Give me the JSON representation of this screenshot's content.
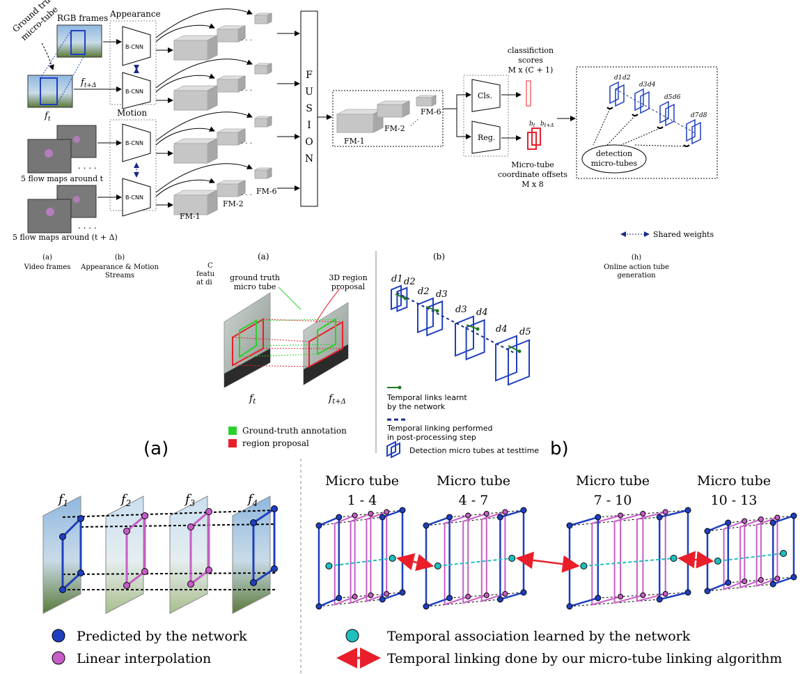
{
  "top": {
    "ground_truth_micro_tube": [
      "Ground truth",
      "micro-tube"
    ],
    "rgb_frames": "RGB frames",
    "appearance": "Appearance",
    "motion": "Motion",
    "bcnn": "B-CNN",
    "f_t": "f",
    "f_t_sub": "t",
    "f_t_delta": "f",
    "f_t_delta_sub": "t+Δ",
    "flow_t": "5 flow maps around t",
    "flow_t_delta": "5 flow maps around (t + Δ)",
    "fm1": "FM-1",
    "fm2": "FM-2",
    "fm6": "FM-6",
    "fusion": [
      "F",
      "U",
      "S",
      "I",
      "O",
      "N"
    ],
    "cls": "Cls.",
    "reg": "Reg.",
    "classification_scores": [
      "classifiction",
      "scores",
      "M x (C + 1)"
    ],
    "micro_tube_offsets": [
      "Micro-tube",
      "coordinate offsets",
      "M x 8"
    ],
    "bt": "b",
    "bt_sub": "t",
    "bt_delta": "b",
    "bt_delta_sub": "t+Δ",
    "detection_micro_tubes": [
      "detection",
      "micro-tubes"
    ],
    "d_labels": [
      "d1",
      "d2",
      "d3",
      "d4",
      "d5",
      "d6",
      "d7",
      "d8"
    ],
    "shared_weights": "Shared weights",
    "cap_a": [
      "(a)",
      "Video frames"
    ],
    "cap_b": [
      "(b)",
      "Appearance & Motion",
      "Streams"
    ],
    "cap_c": [
      "C",
      "featu",
      "at di"
    ],
    "cap_h": [
      "(h)",
      "Online action tube",
      "generation"
    ]
  },
  "middle": {
    "label_a": "(a)",
    "label_b": "(b)",
    "ground_truth_micro_tube": [
      "ground truth",
      "micro tube"
    ],
    "region_proposal_3d": [
      "3D region",
      "proposal"
    ],
    "ft": "f",
    "ft_sub": "t",
    "ft_delta": "f",
    "ft_delta_sub": "t+Δ",
    "legend_gt": "Ground-truth annotation",
    "legend_rp": "region proposal",
    "big_a": "(a)",
    "big_b": "b)",
    "d_pairs": [
      [
        "d1",
        "d2"
      ],
      [
        "d2",
        "d3"
      ],
      [
        "d3",
        "d4"
      ],
      [
        "d4",
        "d5"
      ]
    ],
    "temporal_links": [
      "Temporal links learnt",
      "by the network"
    ],
    "temporal_linking": [
      "Temporal linking performed",
      "in post-processing step"
    ],
    "detection_tubes": "Detection micro tubes at testtime"
  },
  "bottom": {
    "frames": [
      "f1",
      "f2",
      "f3",
      "f4"
    ],
    "micro_tubes": [
      {
        "title": "Micro tube",
        "range": "1 - 4"
      },
      {
        "title": "Micro tube",
        "range": "4 - 7"
      },
      {
        "title": "Micro tube",
        "range": "7 - 10"
      },
      {
        "title": "Micro tube",
        "range": "10 - 13"
      }
    ],
    "legend_predicted": "Predicted by the network",
    "legend_interp": "Linear interpolation",
    "legend_assoc": "Temporal association learned by the network",
    "legend_linking": "Temporal linking done by our micro-tube linking algorithm"
  },
  "colors": {
    "blue": "#1f3fbf",
    "navy": "#1a2a8a",
    "magenta": "#c75dc7",
    "cyan": "#1fbfbf",
    "red": "#e81f2a",
    "green": "#2ad12a",
    "gray": "#c8c8c8"
  }
}
